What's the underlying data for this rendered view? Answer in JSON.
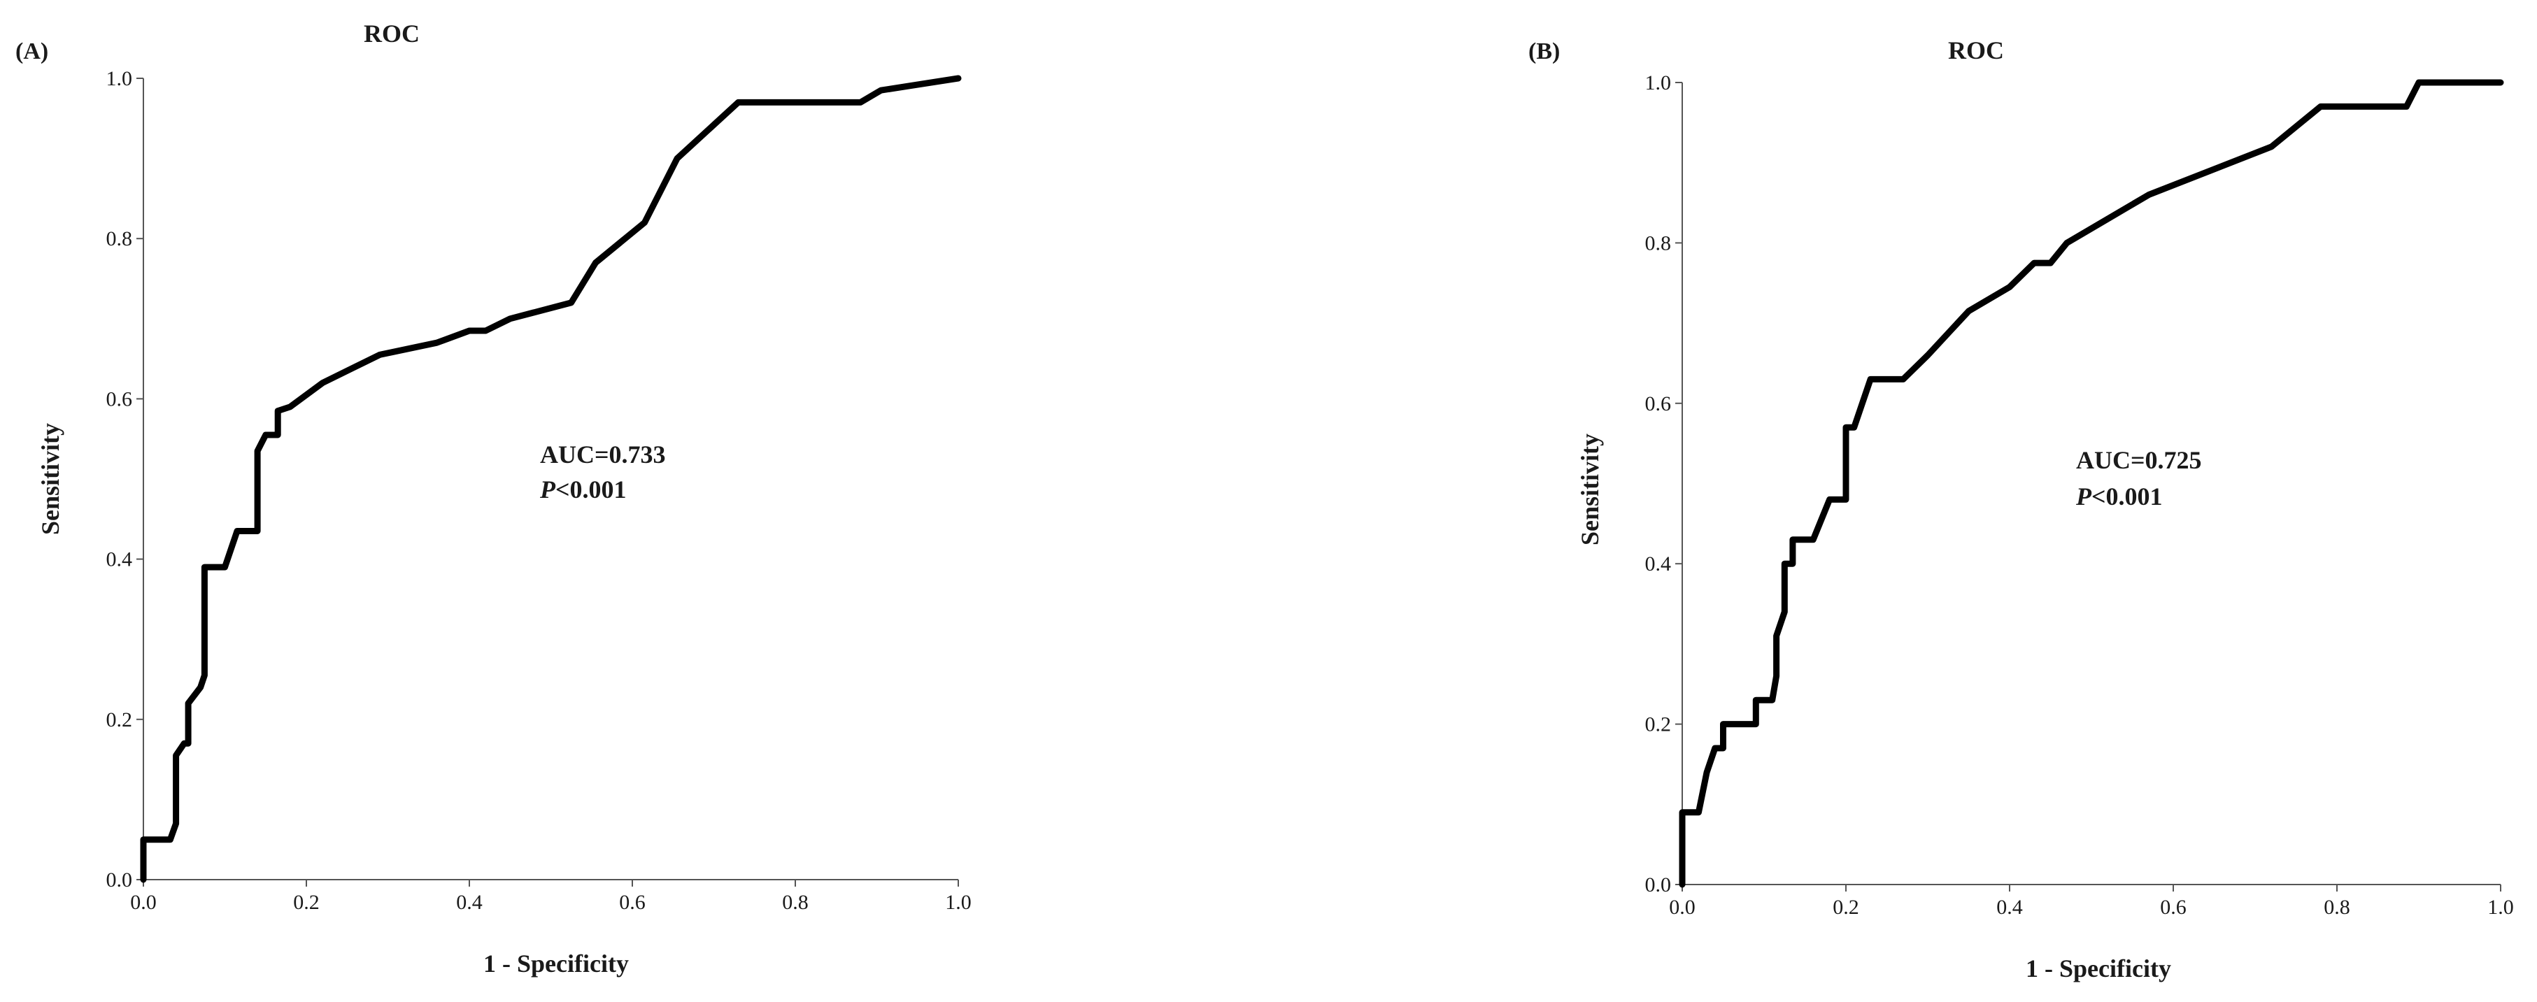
{
  "chart_data": [
    {
      "panel_label": "(A)",
      "type": "line",
      "title": "ROC",
      "xlabel": "1 - Specificity",
      "ylabel": "Sensitivity",
      "xlim": [
        0,
        1
      ],
      "ylim": [
        0,
        1
      ],
      "x_ticks": [
        "0.0",
        "0.2",
        "0.4",
        "0.6",
        "0.8",
        "1.0"
      ],
      "y_ticks": [
        "0.0",
        "0.2",
        "0.4",
        "0.6",
        "0.8",
        "1.0"
      ],
      "grid": false,
      "annotation": {
        "auc": "AUC=0.733",
        "p_symbol": "P",
        "p_value": "<0.001"
      },
      "series": [
        {
          "x": [
            0.0,
            0.0,
            0.033,
            0.04,
            0.04,
            0.05,
            0.055,
            0.055,
            0.07,
            0.075,
            0.075,
            0.1,
            0.115,
            0.14,
            0.14,
            0.15,
            0.165,
            0.165,
            0.18,
            0.22,
            0.29,
            0.36,
            0.4,
            0.42,
            0.45,
            0.525,
            0.555,
            0.615,
            0.655,
            0.73,
            0.88,
            0.905,
            1.0
          ],
          "y": [
            0.0,
            0.05,
            0.05,
            0.07,
            0.155,
            0.17,
            0.17,
            0.22,
            0.24,
            0.255,
            0.39,
            0.39,
            0.435,
            0.435,
            0.535,
            0.555,
            0.555,
            0.585,
            0.59,
            0.62,
            0.655,
            0.67,
            0.685,
            0.685,
            0.7,
            0.72,
            0.77,
            0.82,
            0.9,
            0.97,
            0.97,
            0.985,
            1.0
          ]
        }
      ]
    },
    {
      "panel_label": "(B)",
      "type": "line",
      "title": "ROC",
      "xlabel": "1 - Specificity",
      "ylabel": "Sensitivity",
      "xlim": [
        0,
        1
      ],
      "ylim": [
        0,
        1
      ],
      "x_ticks": [
        "0.0",
        "0.2",
        "0.4",
        "0.6",
        "0.8",
        "1.0"
      ],
      "y_ticks": [
        "0.0",
        "0.2",
        "0.4",
        "0.6",
        "0.8",
        "1.0"
      ],
      "grid": false,
      "annotation": {
        "auc": "AUC=0.725",
        "p_symbol": "P",
        "p_value": "<0.001"
      },
      "series": [
        {
          "x": [
            0.0,
            0.0,
            0.02,
            0.03,
            0.04,
            0.05,
            0.05,
            0.09,
            0.09,
            0.11,
            0.115,
            0.115,
            0.125,
            0.125,
            0.135,
            0.135,
            0.16,
            0.18,
            0.2,
            0.2,
            0.21,
            0.23,
            0.27,
            0.3,
            0.35,
            0.4,
            0.43,
            0.45,
            0.47,
            0.52,
            0.57,
            0.72,
            0.78,
            0.885,
            0.9,
            1.0
          ],
          "y": [
            0.0,
            0.09,
            0.09,
            0.14,
            0.17,
            0.17,
            0.2,
            0.2,
            0.23,
            0.23,
            0.26,
            0.31,
            0.34,
            0.4,
            0.4,
            0.43,
            0.43,
            0.48,
            0.48,
            0.57,
            0.57,
            0.63,
            0.63,
            0.66,
            0.715,
            0.745,
            0.775,
            0.775,
            0.8,
            0.83,
            0.86,
            0.92,
            0.97,
            0.97,
            1.0,
            1.0
          ]
        }
      ]
    }
  ]
}
